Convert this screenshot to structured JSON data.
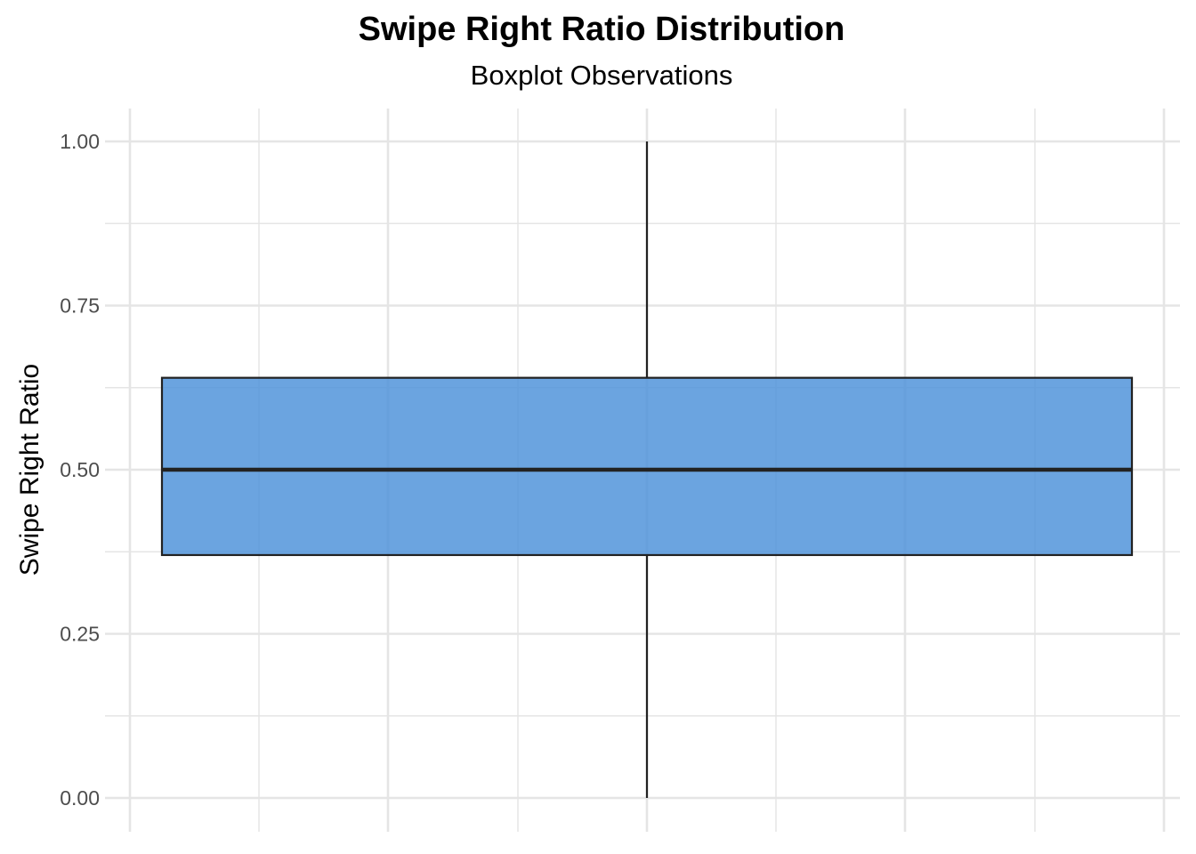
{
  "chart_data": {
    "type": "boxplot",
    "title": "Swipe Right Ratio Distribution",
    "subtitle": "Boxplot Observations",
    "xlabel": "",
    "ylabel": "Swipe Right Ratio",
    "ylim": [
      0,
      1
    ],
    "y_ticks": [
      0,
      0.25,
      0.5,
      0.75,
      1
    ],
    "y_tick_labels": [
      "0.00",
      "0.25",
      "0.50",
      "0.75",
      "1.00"
    ],
    "grid": true,
    "box": {
      "min": 0.0,
      "q1": 0.37,
      "median": 0.5,
      "q3": 0.64,
      "max": 1.0
    },
    "colors": {
      "box_fill": "#4a90d9",
      "box_stroke": "#222222",
      "grid": "#e5e5e5",
      "tick_label": "#4d4d4d"
    }
  }
}
